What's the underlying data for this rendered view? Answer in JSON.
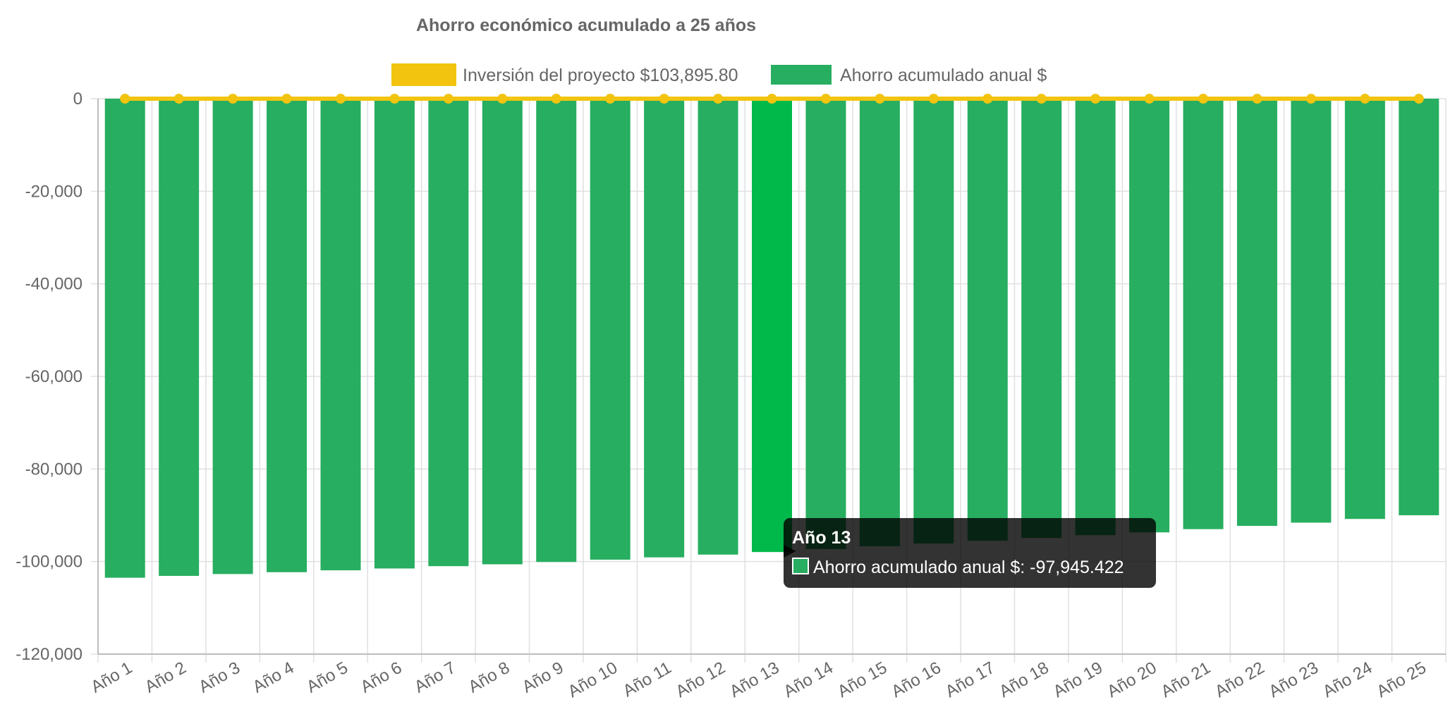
{
  "chart_data": {
    "type": "bar",
    "title": "Ahorro económico acumulado a 25 años",
    "categories": [
      "Año 1",
      "Año 2",
      "Año 3",
      "Año 4",
      "Año 5",
      "Año 6",
      "Año 7",
      "Año 8",
      "Año 9",
      "Año 10",
      "Año 11",
      "Año 12",
      "Año 13",
      "Año 14",
      "Año 15",
      "Año 16",
      "Año 17",
      "Año 18",
      "Año 19",
      "Año 20",
      "Año 21",
      "Año 22",
      "Año 23",
      "Año 24",
      "Año 25"
    ],
    "series": [
      {
        "name": "Inversión del proyecto $103,895.80",
        "type": "line",
        "color": "#f2c40f",
        "values": [
          0,
          0,
          0,
          0,
          0,
          0,
          0,
          0,
          0,
          0,
          0,
          0,
          0,
          0,
          0,
          0,
          0,
          0,
          0,
          0,
          0,
          0,
          0,
          0,
          0
        ]
      },
      {
        "name": "Ahorro acumulado anual $",
        "type": "bar",
        "color": "#27ae60",
        "highlight_color": "#00b94a",
        "values": [
          -103500,
          -103100,
          -102700,
          -102300,
          -101900,
          -101500,
          -101000,
          -100600,
          -100100,
          -99600,
          -99100,
          -98500,
          -97945.422,
          -97300,
          -96700,
          -96100,
          -95500,
          -94900,
          -94300,
          -93700,
          -93000,
          -92300,
          -91600,
          -90800,
          -90000
        ]
      }
    ],
    "ylim": [
      -120000,
      0
    ],
    "yticks": [
      0,
      -20000,
      -40000,
      -60000,
      -80000,
      -100000,
      -120000
    ],
    "ytick_labels": [
      "0",
      "-20,000",
      "-40,000",
      "-60,000",
      "-80,000",
      "-100,000",
      "-120,000"
    ],
    "grid": true,
    "legend_position": "top",
    "tooltip": {
      "category_index": 12,
      "title": "Año 13",
      "label": "Ahorro acumulado anual $: -97,945.422"
    }
  }
}
